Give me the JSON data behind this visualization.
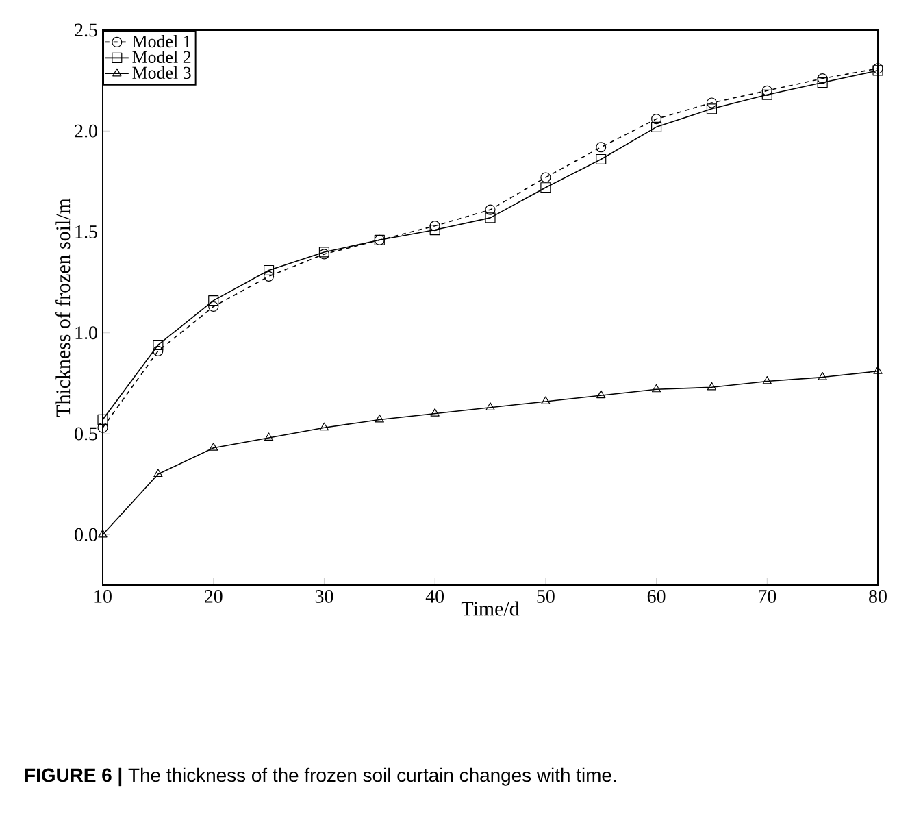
{
  "chart_data": {
    "type": "line",
    "xlabel": "Time/d",
    "ylabel": "Thickness of frozen soil/m",
    "x": [
      10,
      15,
      20,
      25,
      30,
      35,
      40,
      45,
      50,
      55,
      60,
      65,
      70,
      75,
      80
    ],
    "series": [
      {
        "name": "Model 1",
        "color": "#000000",
        "marker": "circle",
        "line_style": "dashed",
        "values": [
          0.53,
          0.91,
          1.13,
          1.28,
          1.39,
          1.46,
          1.53,
          1.61,
          1.77,
          1.92,
          2.06,
          2.14,
          2.2,
          2.26,
          2.31
        ]
      },
      {
        "name": "Model 2",
        "color": "#000000",
        "marker": "square",
        "line_style": "solid",
        "values": [
          0.57,
          0.94,
          1.16,
          1.31,
          1.4,
          1.46,
          1.51,
          1.57,
          1.72,
          1.86,
          2.02,
          2.11,
          2.18,
          2.24,
          2.3
        ]
      },
      {
        "name": "Model 3",
        "color": "#000000",
        "marker": "triangle",
        "line_style": "solid",
        "values": [
          0.0,
          0.3,
          0.43,
          0.48,
          0.53,
          0.57,
          0.6,
          0.63,
          0.66,
          0.69,
          0.72,
          0.73,
          0.76,
          0.78,
          0.81
        ]
      }
    ],
    "xlim": [
      10,
      80
    ],
    "ylim": [
      -0.25,
      2.5
    ],
    "xticks": [
      10,
      20,
      30,
      40,
      50,
      60,
      70,
      80
    ],
    "yticks": [
      {
        "value": 0,
        "label": "0.0"
      },
      {
        "value": 0.5,
        "label": "0.5"
      },
      {
        "value": 1,
        "label": "1.0"
      },
      {
        "value": 1.5,
        "label": "1.5"
      },
      {
        "value": 2,
        "label": "2.0"
      },
      {
        "value": 2.5,
        "label": "2.5"
      }
    ],
    "grid": false,
    "legend": "top left",
    "annotations": [
      "**FIGURE 6 |** The thickness of the frozen soil curtain changes with time."
    ]
  }
}
